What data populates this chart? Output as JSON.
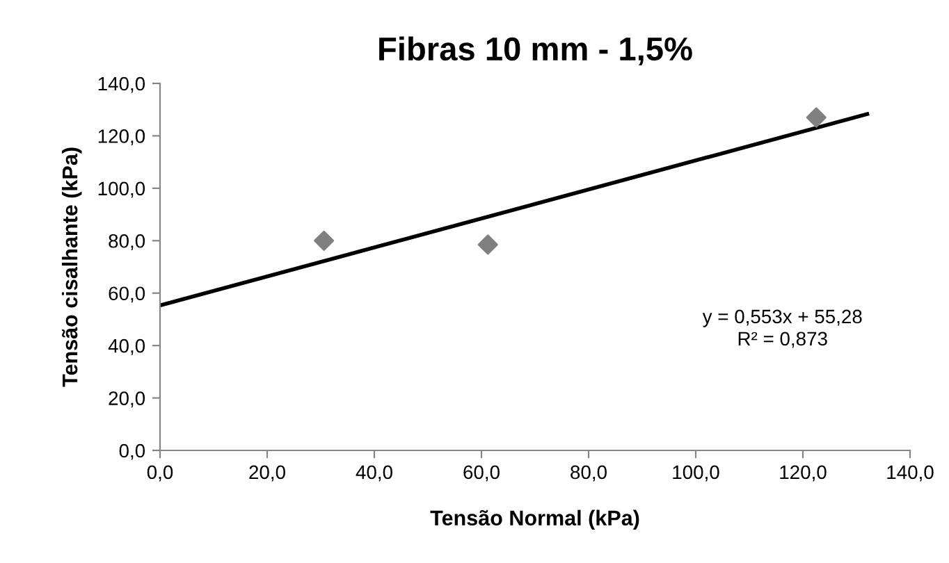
{
  "chart_data": {
    "type": "scatter",
    "title": "Fibras 10 mm - 1,5%",
    "xlabel": "Tensão Normal (kPa)",
    "ylabel": "Tensão cisalhante (kPa)",
    "series": [
      {
        "color": "#808080",
        "marker": "diamond",
        "x": [
          30.6,
          61.2,
          122.5
        ],
        "values": [
          80.0,
          78.5,
          127.0
        ]
      },
      {
        "type": "line",
        "color": "#000000",
        "marker": "none",
        "line_style": "solid",
        "x": [
          0,
          132
        ],
        "values": [
          55.3,
          128.3
        ]
      }
    ],
    "annotations": [
      "y = 0,553x + 55,28\nR² = 0,873"
    ],
    "xlim": [
      0,
      140
    ],
    "ylim": [
      0,
      140
    ],
    "xticks": [
      {
        "value": 0,
        "label": "0,0"
      },
      {
        "value": 20,
        "label": "20,0"
      },
      {
        "value": 40,
        "label": "40,0"
      },
      {
        "value": 60,
        "label": "60,0"
      },
      {
        "value": 80,
        "label": "80,0"
      },
      {
        "value": 100,
        "label": "100,0"
      },
      {
        "value": 120,
        "label": "120,0"
      },
      {
        "value": 140,
        "label": "140,0"
      }
    ],
    "yticks": [
      {
        "value": 0,
        "label": "0,0"
      },
      {
        "value": 20,
        "label": "20,0"
      },
      {
        "value": 40,
        "label": "40,0"
      },
      {
        "value": 60,
        "label": "60,0"
      },
      {
        "value": 80,
        "label": "80,0"
      },
      {
        "value": 100,
        "label": "100,0"
      },
      {
        "value": 120,
        "label": "120,0"
      },
      {
        "value": 140,
        "label": "140,0"
      }
    ],
    "grid": false,
    "legend": false
  }
}
